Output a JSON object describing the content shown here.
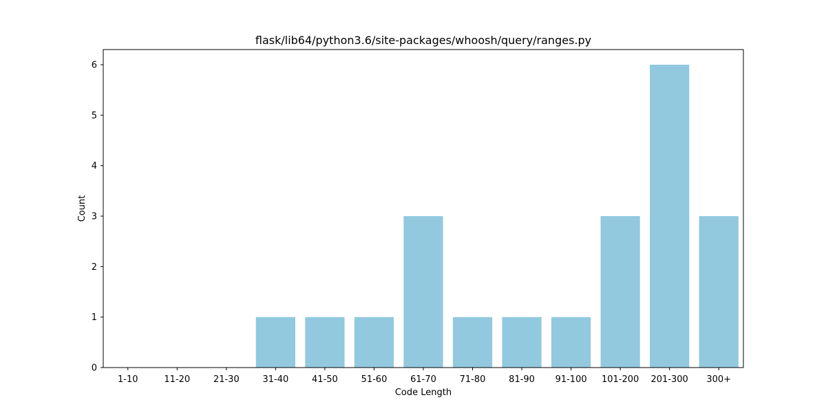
{
  "chart_data": {
    "type": "bar",
    "title": "flask/lib64/python3.6/site-packages/whoosh/query/ranges.py",
    "xlabel": "Code Length",
    "ylabel": "Count",
    "categories": [
      "1-10",
      "11-20",
      "21-30",
      "31-40",
      "41-50",
      "51-60",
      "61-70",
      "71-80",
      "81-90",
      "91-100",
      "101-200",
      "201-300",
      "300+"
    ],
    "values": [
      0,
      0,
      0,
      1,
      1,
      1,
      3,
      1,
      1,
      1,
      3,
      6,
      3
    ],
    "ylim": [
      0,
      6.3
    ],
    "yticks": [
      0,
      1,
      2,
      3,
      4,
      5,
      6
    ],
    "bar_color": "#92c9df",
    "grid": false,
    "legend": "none"
  }
}
